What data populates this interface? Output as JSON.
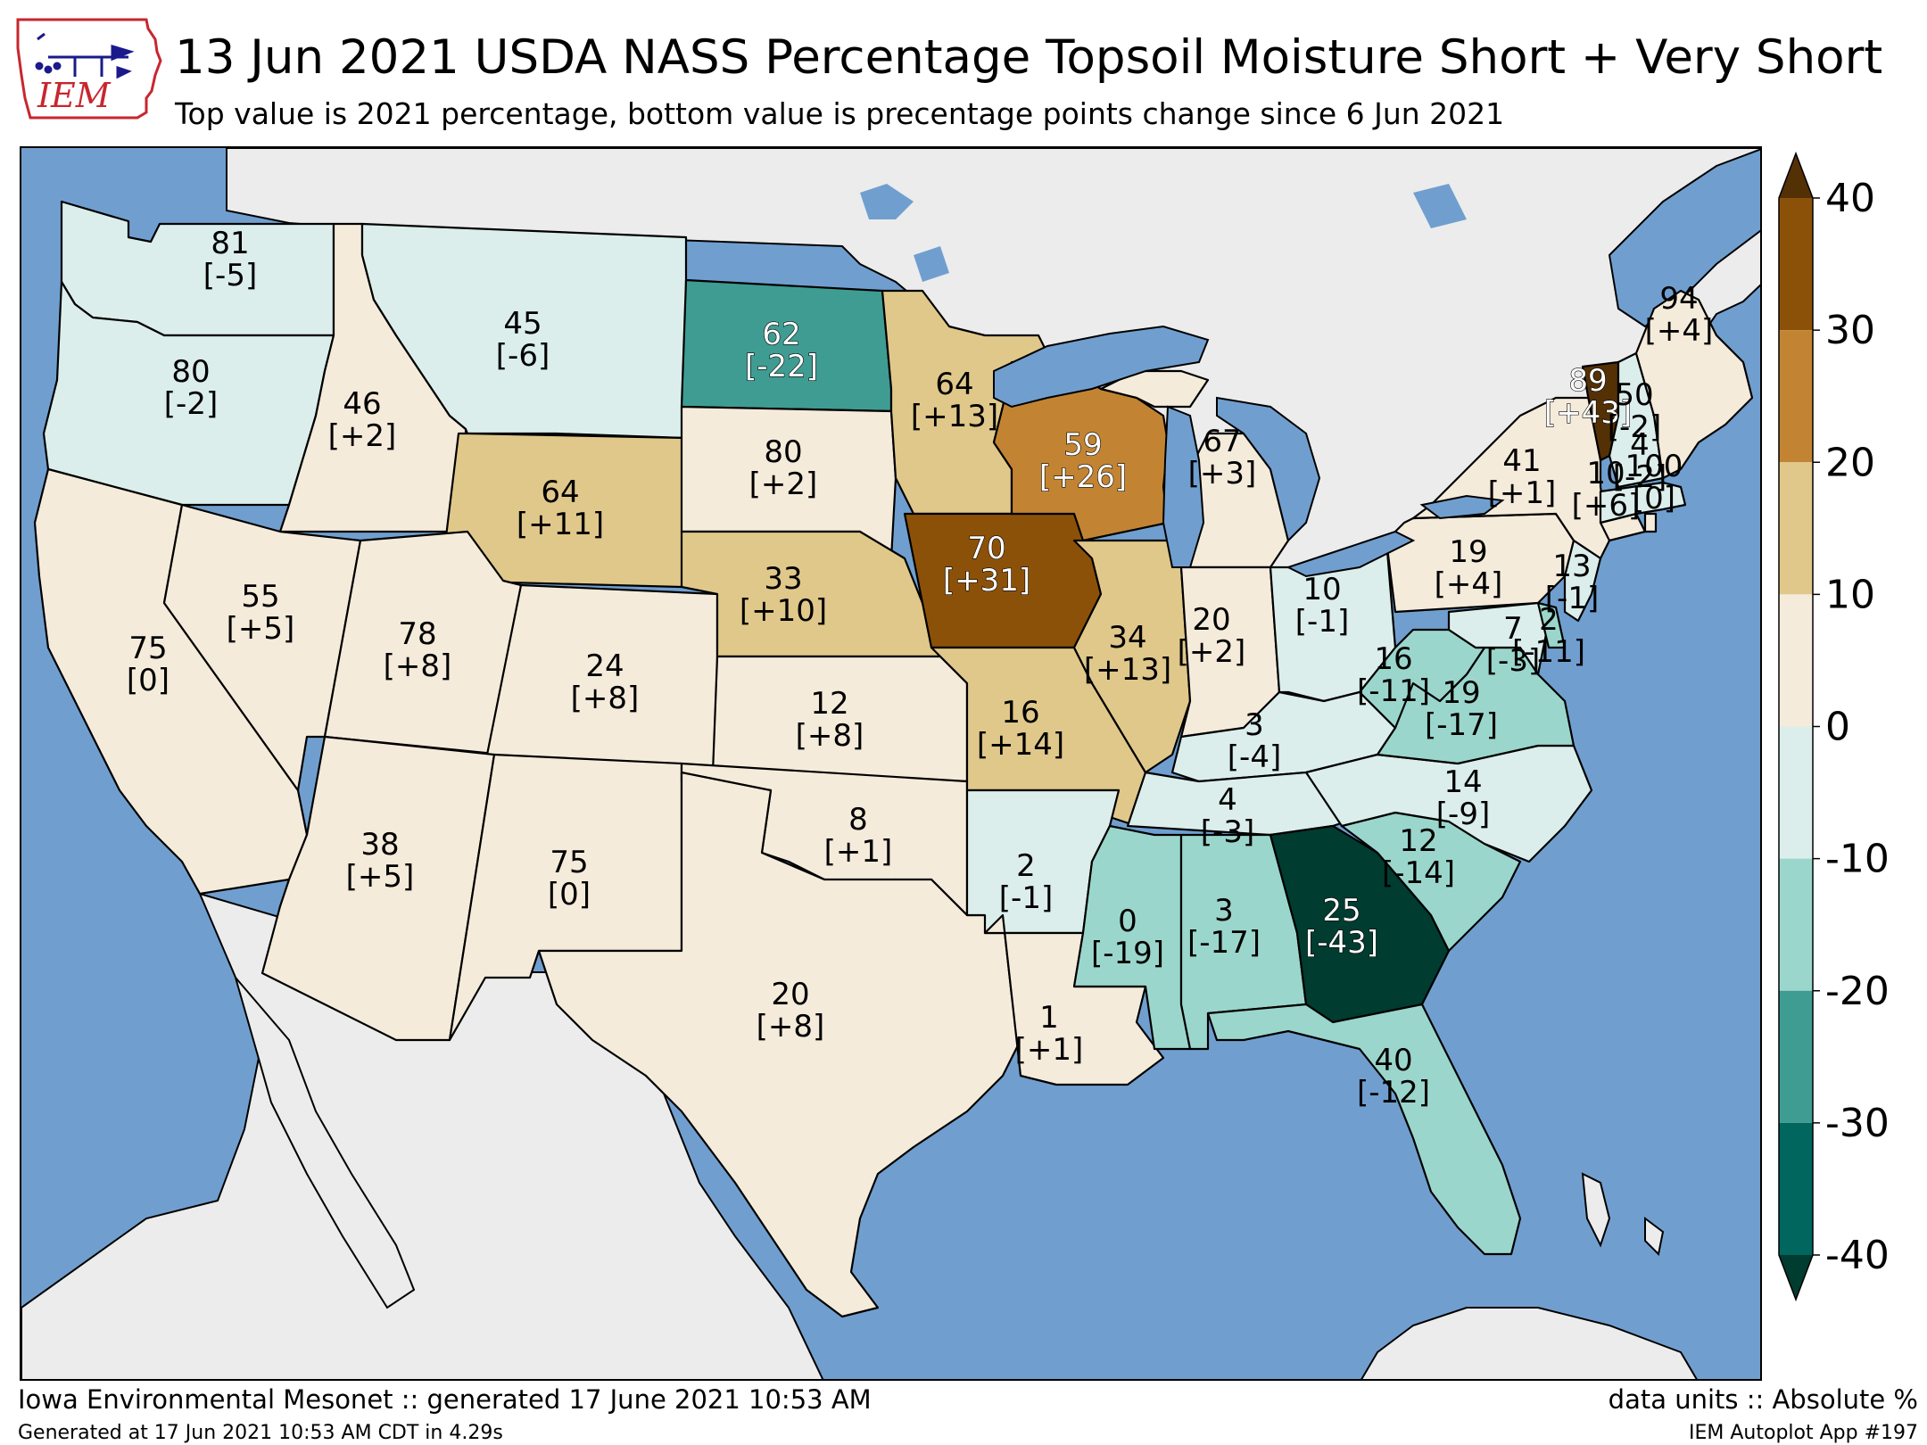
{
  "header": {
    "logo_text": "IEM",
    "title": "13 Jun 2021 USDA NASS Percentage Topsoil Moisture Short + Very Short",
    "subtitle": "Top value is 2021 percentage, bottom value is precentage points change since 6 Jun 2021"
  },
  "footer": {
    "left": "Iowa Environmental Mesonet :: generated 17 June 2021 10:53 AM",
    "right": "data units :: Absolute %",
    "left_small": "Generated at 17 Jun 2021 10:53 AM CDT in 4.29s",
    "right_small": "IEM Autoplot App #197"
  },
  "colors": {
    "ocean": "#709fcf",
    "land_outside": "#ececec",
    "lakes": "#709fcf"
  },
  "colorbar": {
    "ticks": [
      "40",
      "30",
      "20",
      "10",
      "0",
      "-10",
      "-20",
      "-30",
      "-40"
    ],
    "bins": [
      {
        "from": 30,
        "to": 40,
        "color": "#8c5109"
      },
      {
        "from": 20,
        "to": 30,
        "color": "#c28433"
      },
      {
        "from": 10,
        "to": 20,
        "color": "#e0c88b"
      },
      {
        "from": 0,
        "to": 10,
        "color": "#f5ebdb"
      },
      {
        "from": -10,
        "to": 0,
        "color": "#dbeeeb"
      },
      {
        "from": -20,
        "to": -10,
        "color": "#9bd6cc"
      },
      {
        "from": -30,
        "to": -20,
        "color": "#3f9c92"
      },
      {
        "from": -40,
        "to": -30,
        "color": "#01665e"
      }
    ],
    "over_color": "#543005",
    "under_color": "#003c30"
  },
  "states": [
    {
      "id": "WA",
      "top": "81",
      "bottom": "[-5]",
      "change": -5
    },
    {
      "id": "OR",
      "top": "80",
      "bottom": "[-2]",
      "change": -2
    },
    {
      "id": "CA",
      "top": "75",
      "bottom": "[0]",
      "change": 0
    },
    {
      "id": "ID",
      "top": "46",
      "bottom": "[+2]",
      "change": 2
    },
    {
      "id": "NV",
      "top": "55",
      "bottom": "[+5]",
      "change": 5
    },
    {
      "id": "MT",
      "top": "45",
      "bottom": "[-6]",
      "change": -6
    },
    {
      "id": "WY",
      "top": "64",
      "bottom": "[+11]",
      "change": 11
    },
    {
      "id": "UT",
      "top": "78",
      "bottom": "[+8]",
      "change": 8
    },
    {
      "id": "CO",
      "top": "24",
      "bottom": "[+8]",
      "change": 8
    },
    {
      "id": "AZ",
      "top": "38",
      "bottom": "[+5]",
      "change": 5
    },
    {
      "id": "NM",
      "top": "75",
      "bottom": "[0]",
      "change": 0
    },
    {
      "id": "ND",
      "top": "62",
      "bottom": "[-22]",
      "change": -22
    },
    {
      "id": "SD",
      "top": "80",
      "bottom": "[+2]",
      "change": 2
    },
    {
      "id": "NE",
      "top": "33",
      "bottom": "[+10]",
      "change": 10
    },
    {
      "id": "KS",
      "top": "12",
      "bottom": "[+8]",
      "change": 8
    },
    {
      "id": "OK",
      "top": "8",
      "bottom": "[+1]",
      "change": 1
    },
    {
      "id": "TX",
      "top": "20",
      "bottom": "[+8]",
      "change": 8
    },
    {
      "id": "MN",
      "top": "64",
      "bottom": "[+13]",
      "change": 13
    },
    {
      "id": "IA",
      "top": "70",
      "bottom": "[+31]",
      "change": 31
    },
    {
      "id": "MO",
      "top": "16",
      "bottom": "[+14]",
      "change": 14
    },
    {
      "id": "AR",
      "top": "2",
      "bottom": "[-1]",
      "change": -1
    },
    {
      "id": "LA",
      "top": "1",
      "bottom": "[+1]",
      "change": 1
    },
    {
      "id": "WI",
      "top": "59",
      "bottom": "[+26]",
      "change": 26
    },
    {
      "id": "IL",
      "top": "34",
      "bottom": "[+13]",
      "change": 13
    },
    {
      "id": "MI",
      "top": "67",
      "bottom": "[+3]",
      "change": 3
    },
    {
      "id": "IN",
      "top": "20",
      "bottom": "[+2]",
      "change": 2
    },
    {
      "id": "OH",
      "top": "10",
      "bottom": "[-1]",
      "change": -1
    },
    {
      "id": "KY",
      "top": "3",
      "bottom": "[-4]",
      "change": -4
    },
    {
      "id": "TN",
      "top": "4",
      "bottom": "[-3]",
      "change": -3
    },
    {
      "id": "MS",
      "top": "0",
      "bottom": "[-19]",
      "change": -19
    },
    {
      "id": "AL",
      "top": "3",
      "bottom": "[-17]",
      "change": -17
    },
    {
      "id": "GA",
      "top": "25",
      "bottom": "[-43]",
      "change": -43
    },
    {
      "id": "FL",
      "top": "40",
      "bottom": "[-12]",
      "change": -12
    },
    {
      "id": "SC",
      "top": "12",
      "bottom": "[-14]",
      "change": -14
    },
    {
      "id": "NC",
      "top": "14",
      "bottom": "[-9]",
      "change": -9
    },
    {
      "id": "VA",
      "top": "19",
      "bottom": "[-17]",
      "change": -17
    },
    {
      "id": "WV",
      "top": "16",
      "bottom": "[-11]",
      "change": -11
    },
    {
      "id": "PA",
      "top": "19",
      "bottom": "[+4]",
      "change": 4
    },
    {
      "id": "NY",
      "top": "41",
      "bottom": "[+1]",
      "change": 1
    },
    {
      "id": "MD",
      "top": "7",
      "bottom": "[-3]",
      "change": -3
    },
    {
      "id": "DE",
      "top": "2",
      "bottom": "[-11]",
      "change": -11
    },
    {
      "id": "NJ",
      "top": "13",
      "bottom": "[-1]",
      "change": -1
    },
    {
      "id": "CT",
      "top": "10",
      "bottom": "[+6]",
      "change": 6
    },
    {
      "id": "RI",
      "top": "100",
      "bottom": "[0]",
      "change": 0
    },
    {
      "id": "MA",
      "top": "4",
      "bottom": "[-2]",
      "change": -2
    },
    {
      "id": "VT",
      "top": "89",
      "bottom": "[+43]",
      "change": 43
    },
    {
      "id": "NH",
      "top": "50",
      "bottom": "[-2]",
      "change": -2
    },
    {
      "id": "ME",
      "top": "94",
      "bottom": "[+4]",
      "change": 4
    }
  ]
}
